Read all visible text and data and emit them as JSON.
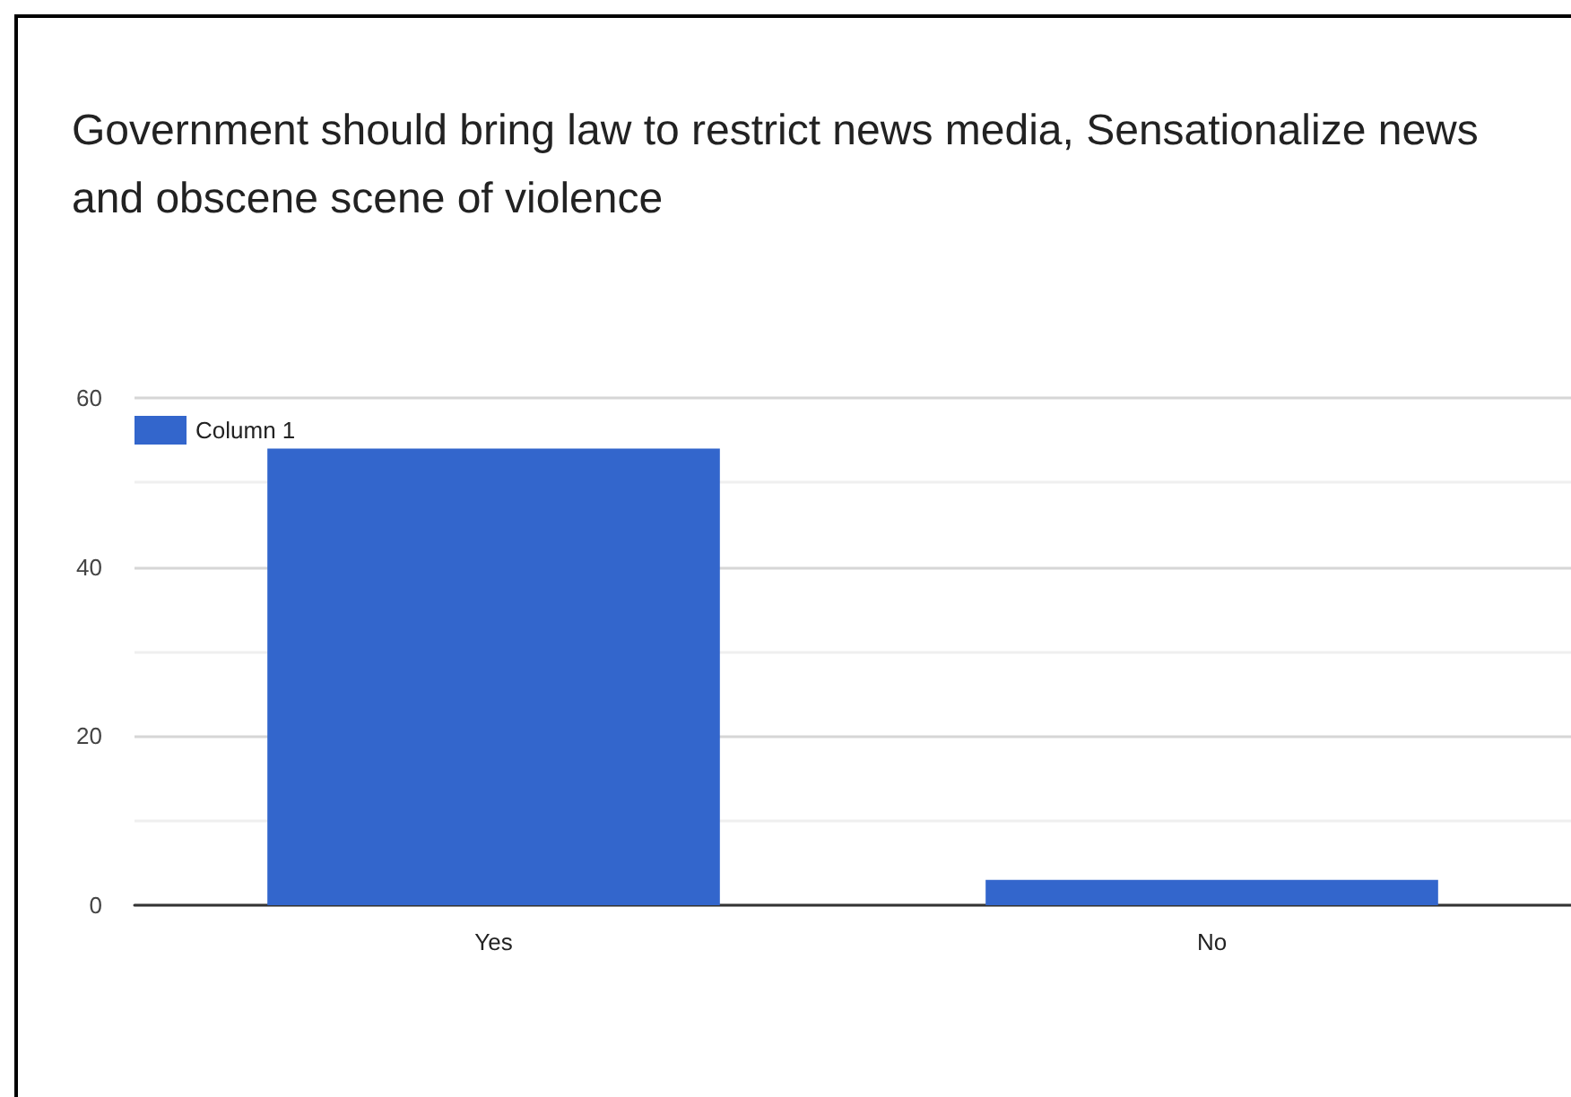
{
  "chart_data": {
    "type": "bar",
    "title": "Government should bring law to restrict news media, Sensationalize news and obscene scene of violence",
    "categories": [
      "Yes",
      "No"
    ],
    "series": [
      {
        "name": "Column 1",
        "color": "#3366cc",
        "values": [
          54,
          3
        ]
      }
    ],
    "ylim": [
      0,
      60
    ],
    "yticks": [
      0,
      {
        "value": 10,
        "label": null
      },
      20,
      {
        "value": 30,
        "label": null
      },
      40,
      {
        "value": 50,
        "label": null
      },
      60
    ],
    "grid": "y",
    "legend": "top left"
  }
}
